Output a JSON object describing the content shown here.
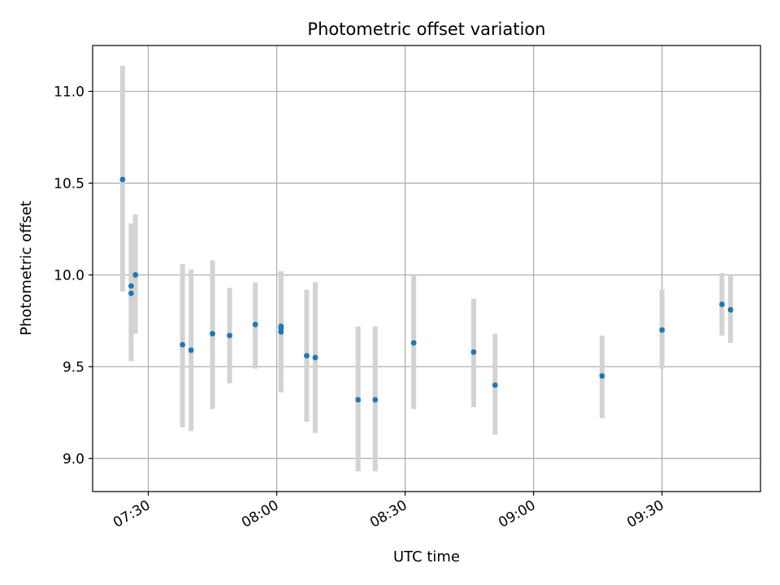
{
  "chart_data": {
    "type": "scatter",
    "title": "Photometric offset variation",
    "xlabel": "UTC time",
    "ylabel": "Photometric offset",
    "xlim": [
      "07:17",
      "09:53"
    ],
    "ylim": [
      8.82,
      11.25
    ],
    "x_ticks": [
      "07:30",
      "08:00",
      "08:30",
      "09:00",
      "09:30"
    ],
    "y_ticks": [
      9.0,
      9.5,
      10.0,
      10.5,
      11.0
    ],
    "y_tick_labels": [
      "9.0",
      "9.5",
      "10.0",
      "10.5",
      "11.0"
    ],
    "grid": true,
    "colors": {
      "point": "#1f77b4",
      "errorbar": "#d3d3d3",
      "grid": "#b0b0b0"
    },
    "points": [
      {
        "time": "07:24",
        "y": 10.52,
        "ymin": 9.91,
        "ymax": 11.14
      },
      {
        "time": "07:26",
        "y": 9.9,
        "ymin": 9.53,
        "ymax": 10.28
      },
      {
        "time": "07:26",
        "y": 9.94,
        "ymin": 9.62,
        "ymax": 10.28
      },
      {
        "time": "07:27",
        "y": 10.0,
        "ymin": 9.68,
        "ymax": 10.33
      },
      {
        "time": "07:38",
        "y": 9.62,
        "ymin": 9.17,
        "ymax": 10.06
      },
      {
        "time": "07:40",
        "y": 9.59,
        "ymin": 9.15,
        "ymax": 10.03
      },
      {
        "time": "07:45",
        "y": 9.68,
        "ymin": 9.27,
        "ymax": 10.08
      },
      {
        "time": "07:49",
        "y": 9.67,
        "ymin": 9.41,
        "ymax": 9.93
      },
      {
        "time": "07:55",
        "y": 9.73,
        "ymin": 9.49,
        "ymax": 9.96
      },
      {
        "time": "08:01",
        "y": 9.71,
        "ymin": 9.36,
        "ymax": 10.02
      },
      {
        "time": "08:01",
        "y": 9.69,
        "ymin": 9.36,
        "ymax": 10.02
      },
      {
        "time": "08:01",
        "y": 9.72,
        "ymin": 9.44,
        "ymax": 10.02
      },
      {
        "time": "08:07",
        "y": 9.56,
        "ymin": 9.2,
        "ymax": 9.92
      },
      {
        "time": "08:09",
        "y": 9.55,
        "ymin": 9.14,
        "ymax": 9.96
      },
      {
        "time": "08:19",
        "y": 9.32,
        "ymin": 8.93,
        "ymax": 9.72
      },
      {
        "time": "08:23",
        "y": 9.32,
        "ymin": 8.93,
        "ymax": 9.72
      },
      {
        "time": "08:32",
        "y": 9.63,
        "ymin": 9.27,
        "ymax": 10.0
      },
      {
        "time": "08:46",
        "y": 9.58,
        "ymin": 9.28,
        "ymax": 9.87
      },
      {
        "time": "08:51",
        "y": 9.4,
        "ymin": 9.13,
        "ymax": 9.68
      },
      {
        "time": "09:16",
        "y": 9.45,
        "ymin": 9.22,
        "ymax": 9.67
      },
      {
        "time": "09:30",
        "y": 9.7,
        "ymin": 9.49,
        "ymax": 9.92
      },
      {
        "time": "09:44",
        "y": 9.84,
        "ymin": 9.67,
        "ymax": 10.01
      },
      {
        "time": "09:46",
        "y": 9.81,
        "ymin": 9.63,
        "ymax": 10.0
      }
    ]
  }
}
